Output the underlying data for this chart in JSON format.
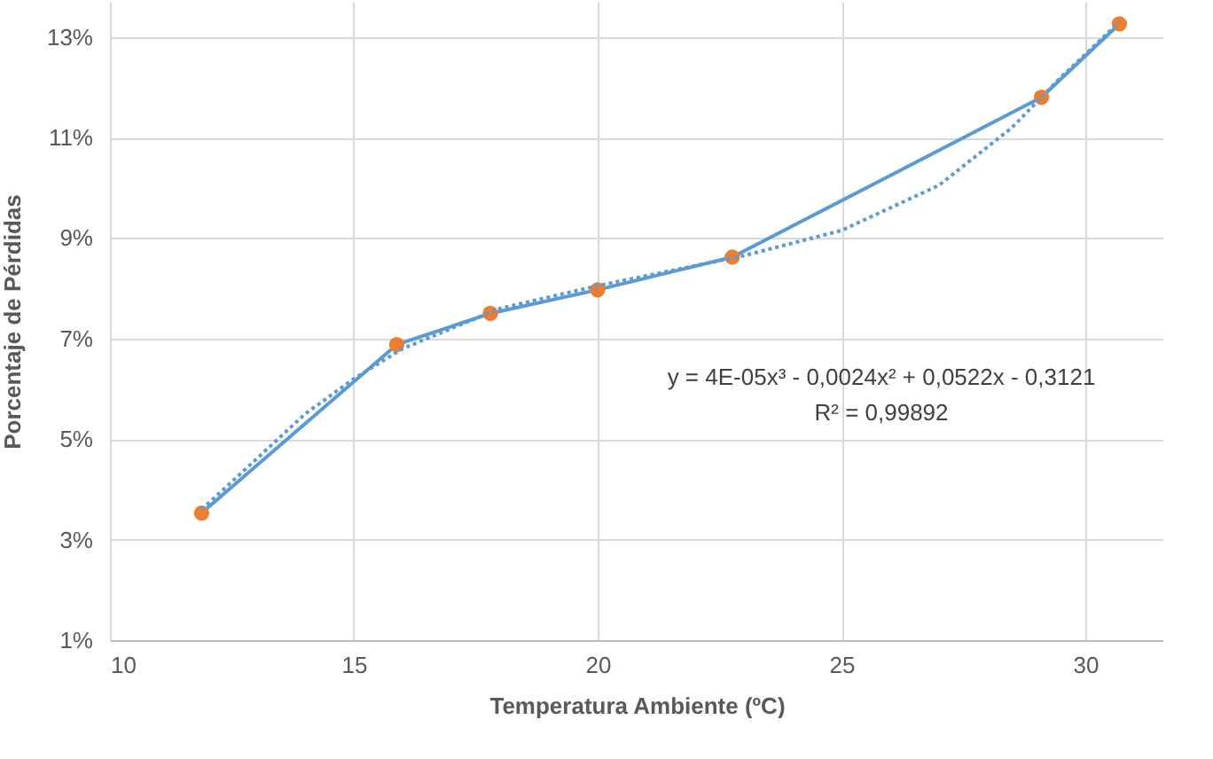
{
  "chart_data": {
    "type": "line",
    "xlabel": "Temperatura Ambiente (ºC)",
    "ylabel": "Porcentaje de Pérdidas",
    "series": [
      {
        "color": "#5b9bd5",
        "marker": "none",
        "line_style": "solid",
        "x": [
          11.88,
          15.88,
          17.8,
          20.0,
          22.76,
          29.1,
          30.7
        ],
        "values": [
          3.53,
          6.88,
          7.5,
          7.97,
          8.62,
          11.8,
          13.26
        ]
      },
      {
        "type": "scatter",
        "color": "#ed7d31",
        "marker": "circle",
        "x": [
          11.88,
          15.88,
          17.8,
          20.0,
          22.76,
          29.1,
          30.7
        ],
        "values": [
          3.53,
          6.88,
          7.5,
          7.97,
          8.62,
          11.8,
          13.26
        ]
      },
      {
        "type": "line",
        "color": "#5b9bd5",
        "marker": "none",
        "line_style": "dotted",
        "x": [
          11.88,
          13,
          14,
          15,
          16,
          18,
          20,
          22,
          23,
          25,
          27,
          28.5,
          29.5,
          30.7
        ],
        "values": [
          3.6,
          4.6,
          5.5,
          6.2,
          6.8,
          7.6,
          8.05,
          8.45,
          8.65,
          9.15,
          10.05,
          11.2,
          12.2,
          13.3
        ]
      }
    ],
    "xlim": [
      10,
      31.6
    ],
    "xticks": [
      10,
      15,
      20,
      25,
      30
    ],
    "ylim": [
      1,
      13.7
    ],
    "yticks": [
      {
        "value": 1,
        "label": "1%"
      },
      {
        "value": 3,
        "label": "3%"
      },
      {
        "value": 5,
        "label": "5%"
      },
      {
        "value": 7,
        "label": "7%"
      },
      {
        "value": 9,
        "label": "9%"
      },
      {
        "value": 11,
        "label": "11%"
      },
      {
        "value": 13,
        "label": "13%"
      }
    ],
    "grid": true,
    "annotations": [
      "y = 4E-05x³ - 0,0024x² + 0,0522x - 0,3121",
      "R² = 0,99892"
    ]
  }
}
